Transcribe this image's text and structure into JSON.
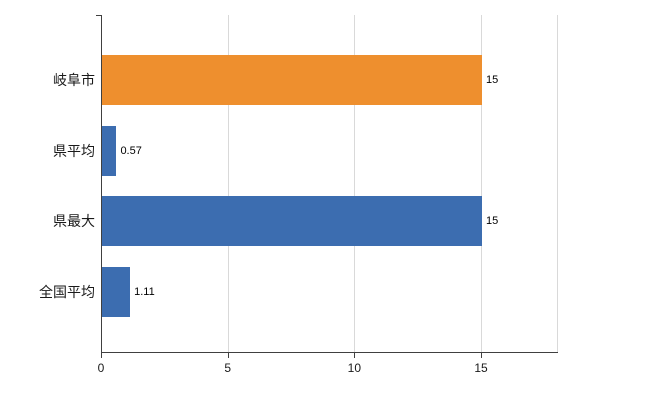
{
  "chart_data": {
    "type": "bar",
    "orientation": "horizontal",
    "title": "",
    "categories": [
      "岐阜市",
      "県平均",
      "県最大",
      "全国平均"
    ],
    "values": [
      15,
      0.57,
      15,
      1.11
    ],
    "value_labels": [
      "15",
      "0.57",
      "15",
      "1.11"
    ],
    "series": [
      {
        "name": "",
        "values": [
          15,
          0.57,
          15,
          1.11
        ]
      }
    ],
    "bar_colors": [
      "#ee8f2e",
      "#3c6db0",
      "#3c6db0",
      "#3c6db0"
    ],
    "x_ticks": [
      "0",
      "5",
      "10",
      "15"
    ],
    "x_tick_values": [
      0,
      5,
      10,
      15
    ],
    "xlim": [
      0,
      18
    ],
    "grid": true,
    "gridline_color": "#d9d9d9",
    "axis_color": "#404040",
    "background": "#ffffff",
    "legend": "none"
  }
}
